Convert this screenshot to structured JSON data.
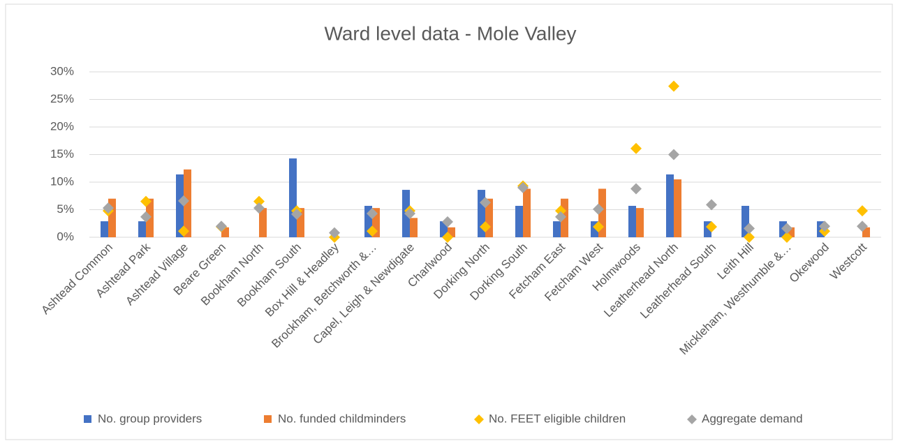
{
  "chart_data": {
    "type": "bar",
    "title": "Ward level data - Mole Valley",
    "categories": [
      "Ashtead Common",
      "Ashtead Park",
      "Ashtead Village",
      "Beare Green",
      "Bookham North",
      "Bookham South",
      "Box Hill & Headley",
      "Brockham, Betchworth &…",
      "Capel, Leigh & Newdigate",
      "Charlwood",
      "Dorking North",
      "Dorking South",
      "Fetcham East",
      "Fetcham West",
      "Holmwoods",
      "Leatherhead North",
      "Leatherhead South",
      "Leith Hill",
      "Mickleham, Westhumble &…",
      "Okewood",
      "Westcott"
    ],
    "series": [
      {
        "name": "No. group providers",
        "color": "#4472c4",
        "type": "bar",
        "values": [
          2.9,
          2.9,
          11.4,
          0,
          0,
          14.3,
          0,
          5.7,
          8.6,
          2.9,
          8.6,
          5.7,
          2.9,
          2.9,
          5.7,
          11.4,
          2.9,
          5.7,
          2.9,
          2.9,
          0
        ]
      },
      {
        "name": "No. funded childminders",
        "color": "#ed7d31",
        "type": "bar",
        "values": [
          7.0,
          7.0,
          12.3,
          1.8,
          5.3,
          5.3,
          0,
          5.3,
          3.5,
          1.8,
          7.0,
          8.8,
          7.0,
          8.8,
          5.3,
          10.5,
          0,
          0,
          1.8,
          0,
          1.8
        ]
      },
      {
        "name": "No. FEET eligible children",
        "color": "#ffc000",
        "type": "marker",
        "values": [
          4.8,
          6.5,
          1.1,
          1.9,
          6.5,
          4.8,
          0,
          1.1,
          4.8,
          0,
          1.9,
          9.3,
          4.8,
          1.9,
          16.1,
          27.4,
          1.9,
          0,
          0,
          1.1,
          4.8
        ]
      },
      {
        "name": "Aggregate demand",
        "color": "#a5a5a5",
        "type": "marker",
        "values": [
          5.3,
          3.7,
          6.6,
          2.0,
          5.3,
          4.2,
          0.8,
          4.3,
          4.3,
          2.8,
          6.3,
          9.0,
          3.7,
          5.1,
          8.8,
          15.0,
          5.9,
          1.6,
          1.6,
          2.0,
          2.0
        ]
      }
    ],
    "ylim": [
      0,
      30
    ],
    "yticks": [
      {
        "value": 0,
        "label": "0%"
      },
      {
        "value": 5,
        "label": "5%"
      },
      {
        "value": 10,
        "label": "10%"
      },
      {
        "value": 15,
        "label": "15%"
      },
      {
        "value": 20,
        "label": "20%"
      },
      {
        "value": 25,
        "label": "25%"
      },
      {
        "value": 30,
        "label": "30%"
      }
    ],
    "grid": true,
    "legend": "bottom"
  }
}
